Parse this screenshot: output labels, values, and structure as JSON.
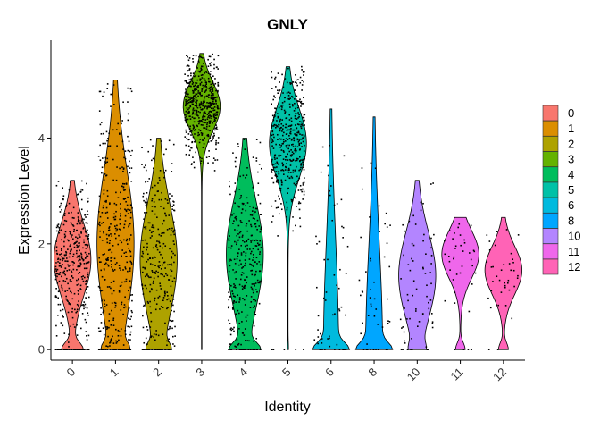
{
  "chart_data": {
    "type": "violin",
    "title": "GNLY",
    "xlabel": "Identity",
    "ylabel": "Expression Level",
    "ylim": [
      -0.2,
      5.85
    ],
    "yticks": [
      0,
      2,
      4
    ],
    "legend_position": "right",
    "grid": false,
    "categories": [
      "0",
      "1",
      "2",
      "3",
      "4",
      "5",
      "6",
      "8",
      "10",
      "11",
      "12"
    ],
    "series": [
      {
        "category": "0",
        "color": "#F8766D",
        "max": 3.2,
        "zero_fraction": 0.35,
        "mode": 1.7,
        "n_points": 420
      },
      {
        "category": "1",
        "color": "#DB8E00",
        "max": 5.1,
        "zero_fraction": 0.3,
        "mode": 2.0,
        "n_points": 400
      },
      {
        "category": "2",
        "color": "#AEA200",
        "max": 4.0,
        "zero_fraction": 0.3,
        "mode": 1.7,
        "n_points": 320
      },
      {
        "category": "3",
        "color": "#64B200",
        "max": 5.6,
        "zero_fraction": 0.0,
        "mode": 4.6,
        "n_points": 520
      },
      {
        "category": "4",
        "color": "#00BD5C",
        "max": 4.0,
        "zero_fraction": 0.4,
        "mode": 1.8,
        "n_points": 340
      },
      {
        "category": "5",
        "color": "#00C1A7",
        "max": 5.35,
        "zero_fraction": 0.02,
        "mode": 3.9,
        "n_points": 440
      },
      {
        "category": "6",
        "color": "#00BADE",
        "max": 4.55,
        "zero_fraction": 0.6,
        "mode": 0.0,
        "n_points": 60
      },
      {
        "category": "8",
        "color": "#00A6FF",
        "max": 4.4,
        "zero_fraction": 0.55,
        "mode": 0.0,
        "n_points": 50
      },
      {
        "category": "10",
        "color": "#B385FF",
        "max": 3.2,
        "zero_fraction": 0.2,
        "mode": 1.4,
        "n_points": 70
      },
      {
        "category": "11",
        "color": "#EF67EB",
        "max": 2.5,
        "zero_fraction": 0.2,
        "mode": 1.8,
        "n_points": 40
      },
      {
        "category": "12",
        "color": "#FF63B6",
        "max": 2.5,
        "zero_fraction": 0.2,
        "mode": 1.5,
        "n_points": 40
      }
    ]
  }
}
